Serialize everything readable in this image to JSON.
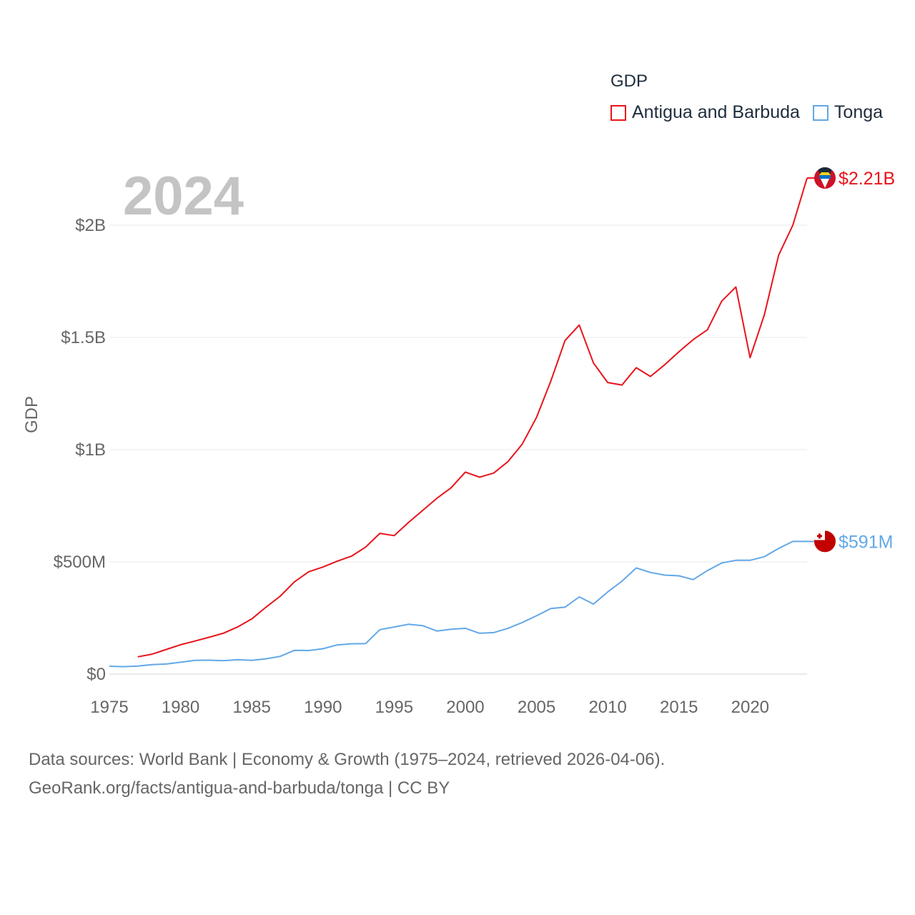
{
  "year_label": "2024",
  "legend": {
    "title": "GDP",
    "items": [
      {
        "label": "Antigua and Barbuda",
        "color": "#e8141c"
      },
      {
        "label": "Tonga",
        "color": "#62a8e8"
      }
    ]
  },
  "source": {
    "line1": "Data sources: World Bank | Economy & Growth (1975–2024, retrieved 2026-04-06).",
    "line2": "GeoRank.org/facts/antigua-and-barbuda/tonga | CC BY"
  },
  "chart_data": {
    "type": "line",
    "title": "GDP",
    "xlabel": "",
    "ylabel": "GDP",
    "xlim": [
      1975,
      2024
    ],
    "ylim": [
      0,
      2300000000
    ],
    "yticks": [
      0,
      500000000,
      1000000000,
      1500000000,
      2000000000
    ],
    "ytick_labels": [
      "$0",
      "$500M",
      "$1B",
      "$1.5B",
      "$2B"
    ],
    "xticks": [
      1975,
      1980,
      1985,
      1990,
      1995,
      2000,
      2005,
      2010,
      2015,
      2020
    ],
    "xtick_labels": [
      "1975",
      "1980",
      "1985",
      "1990",
      "1995",
      "2000",
      "2005",
      "2010",
      "2015",
      "2020"
    ],
    "grid": true,
    "series": [
      {
        "name": "Antigua and Barbuda",
        "color": "#e8141c",
        "end_label": "$2.21B",
        "flag": "antigua-and-barbuda",
        "x": [
          1977,
          1978,
          1979,
          1980,
          1981,
          1982,
          1983,
          1984,
          1985,
          1986,
          1987,
          1988,
          1989,
          1990,
          1991,
          1992,
          1993,
          1994,
          1995,
          1996,
          1997,
          1998,
          1999,
          2000,
          2001,
          2002,
          2003,
          2004,
          2005,
          2006,
          2007,
          2008,
          2009,
          2010,
          2011,
          2012,
          2013,
          2014,
          2015,
          2016,
          2017,
          2018,
          2019,
          2020,
          2021,
          2022,
          2023,
          2024
        ],
        "values": [
          77000000,
          89000000,
          110000000,
          131000000,
          147000000,
          164000000,
          182000000,
          210000000,
          246000000,
          298000000,
          347000000,
          411000000,
          456000000,
          477000000,
          503000000,
          525000000,
          566000000,
          627000000,
          617000000,
          675000000,
          729000000,
          783000000,
          830000000,
          900000000,
          877000000,
          896000000,
          947000000,
          1025000000,
          1144000000,
          1305000000,
          1486000000,
          1555000000,
          1386000000,
          1299000000,
          1288000000,
          1365000000,
          1326000000,
          1378000000,
          1436000000,
          1490000000,
          1534000000,
          1661000000,
          1725000000,
          1410000000,
          1600000000,
          1866000000,
          2000000000,
          2210000000
        ]
      },
      {
        "name": "Tonga",
        "color": "#62a8e8",
        "end_label": "$591M",
        "flag": "tonga",
        "x": [
          1975,
          1976,
          1977,
          1978,
          1979,
          1980,
          1981,
          1982,
          1983,
          1984,
          1985,
          1986,
          1987,
          1988,
          1989,
          1990,
          1991,
          1992,
          1993,
          1994,
          1995,
          1996,
          1997,
          1998,
          1999,
          2000,
          2001,
          2002,
          2003,
          2004,
          2005,
          2006,
          2007,
          2008,
          2009,
          2010,
          2011,
          2012,
          2013,
          2014,
          2015,
          2016,
          2017,
          2018,
          2019,
          2020,
          2021,
          2022,
          2023,
          2024
        ],
        "values": [
          35000000,
          33000000,
          36000000,
          42000000,
          45000000,
          53000000,
          61000000,
          62000000,
          60000000,
          64000000,
          61000000,
          68000000,
          79000000,
          106000000,
          105000000,
          113000000,
          130000000,
          135000000,
          136000000,
          198000000,
          210000000,
          222000000,
          216000000,
          192000000,
          200000000,
          204000000,
          182000000,
          185000000,
          204000000,
          230000000,
          260000000,
          292000000,
          298000000,
          344000000,
          312000000,
          366000000,
          414000000,
          473000000,
          453000000,
          441000000,
          438000000,
          421000000,
          461000000,
          495000000,
          507000000,
          507000000,
          523000000,
          560000000,
          591000000,
          591000000
        ]
      }
    ]
  }
}
